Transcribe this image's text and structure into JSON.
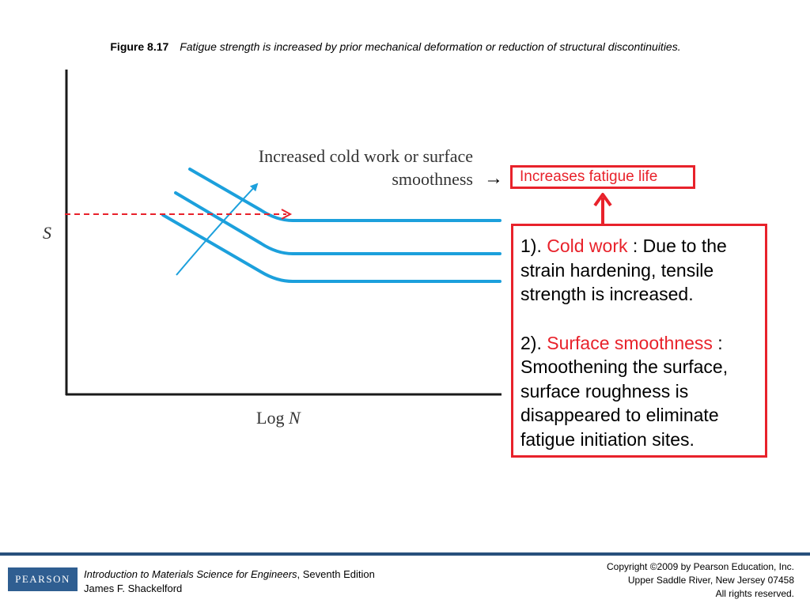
{
  "caption": {
    "label": "Figure 8.17",
    "text": "Fatigue strength is increased by prior mechanical deformation or reduction of structural discontinuities."
  },
  "diagram": {
    "y_axis_label": "S",
    "x_axis_label_prefix": "Log ",
    "x_axis_label_var": "N",
    "annotation_line1": "Increased cold work or surface",
    "annotation_line2": "smoothness",
    "arrow_glyph": "→",
    "curve_color": "#1ca0dc",
    "highlight_color": "#e8222b",
    "curve_count": 3
  },
  "result_box": {
    "text": "Increases fatigue life"
  },
  "explanation": {
    "item1_prefix": "1). ",
    "item1_highlight": "Cold work",
    "item1_text": " : Due to the strain hardening, tensile strength is increased.",
    "item2_prefix": "2). ",
    "item2_highlight": "Surface smoothness",
    "item2_text": " : Smoothening the surface, surface roughness is disappeared to eliminate fatigue initiation sites."
  },
  "footer": {
    "logo_text": "PEARSON",
    "book_title": "Introduction to Materials Science for Engineers",
    "book_edition": ", Seventh Edition",
    "author": "James F. Shackelford",
    "copyright_line1": "Copyright ©2009 by Pearson Education, Inc.",
    "copyright_line2": "Upper Saddle River, New Jersey 07458",
    "copyright_line3": "All rights reserved."
  }
}
